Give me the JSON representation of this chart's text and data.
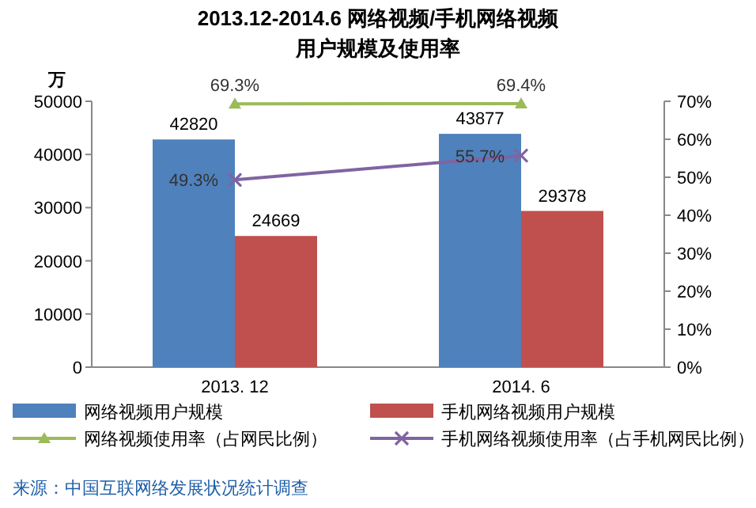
{
  "chart_data": {
    "type": "bar",
    "title": "2013.12-2014.6 网络视频/手机网络视频",
    "subtitle": "用户规模及使用率",
    "ylabel": "万",
    "categories": [
      "2013. 12",
      "2014. 6"
    ],
    "series": [
      {
        "name": "网络视频用户规模",
        "color": "#4f81bd",
        "values": [
          42820,
          43877
        ],
        "value_labels": [
          "42820",
          "43877"
        ]
      },
      {
        "name": "手机网络视频用户规模",
        "color": "#c0504d",
        "values": [
          24669,
          29378
        ],
        "value_labels": [
          "24669",
          "29378"
        ]
      },
      {
        "name": "网络视频使用率（占网民比例）",
        "type": "line",
        "axis": "y2",
        "marker": "triangle",
        "color": "#9bbb59",
        "values": [
          69.3,
          69.4
        ],
        "value_labels": [
          "69.3%",
          "69.4%"
        ]
      },
      {
        "name": "手机网络视频使用率（占手机网民比例）",
        "type": "line",
        "axis": "y2",
        "marker": "cross",
        "color": "#8064a2",
        "values": [
          49.3,
          55.7
        ],
        "value_labels": [
          "49.3%",
          "55.7%"
        ]
      }
    ],
    "ylim": [
      0,
      50000
    ],
    "yticks": [
      0,
      10000,
      20000,
      30000,
      40000,
      50000
    ],
    "y2lim": [
      0,
      70
    ],
    "y2ticks": [
      {
        "value": 0,
        "label": "0%"
      },
      {
        "value": 10,
        "label": "10%"
      },
      {
        "value": 20,
        "label": "20%"
      },
      {
        "value": 30,
        "label": "30%"
      },
      {
        "value": 40,
        "label": "40%"
      },
      {
        "value": 50,
        "label": "50%"
      },
      {
        "value": 60,
        "label": "60%"
      },
      {
        "value": 70,
        "label": "70%"
      }
    ],
    "legend": "bottom",
    "grid": false,
    "annotations": [
      "来源：中国互联网络发展状况统计调查"
    ]
  }
}
